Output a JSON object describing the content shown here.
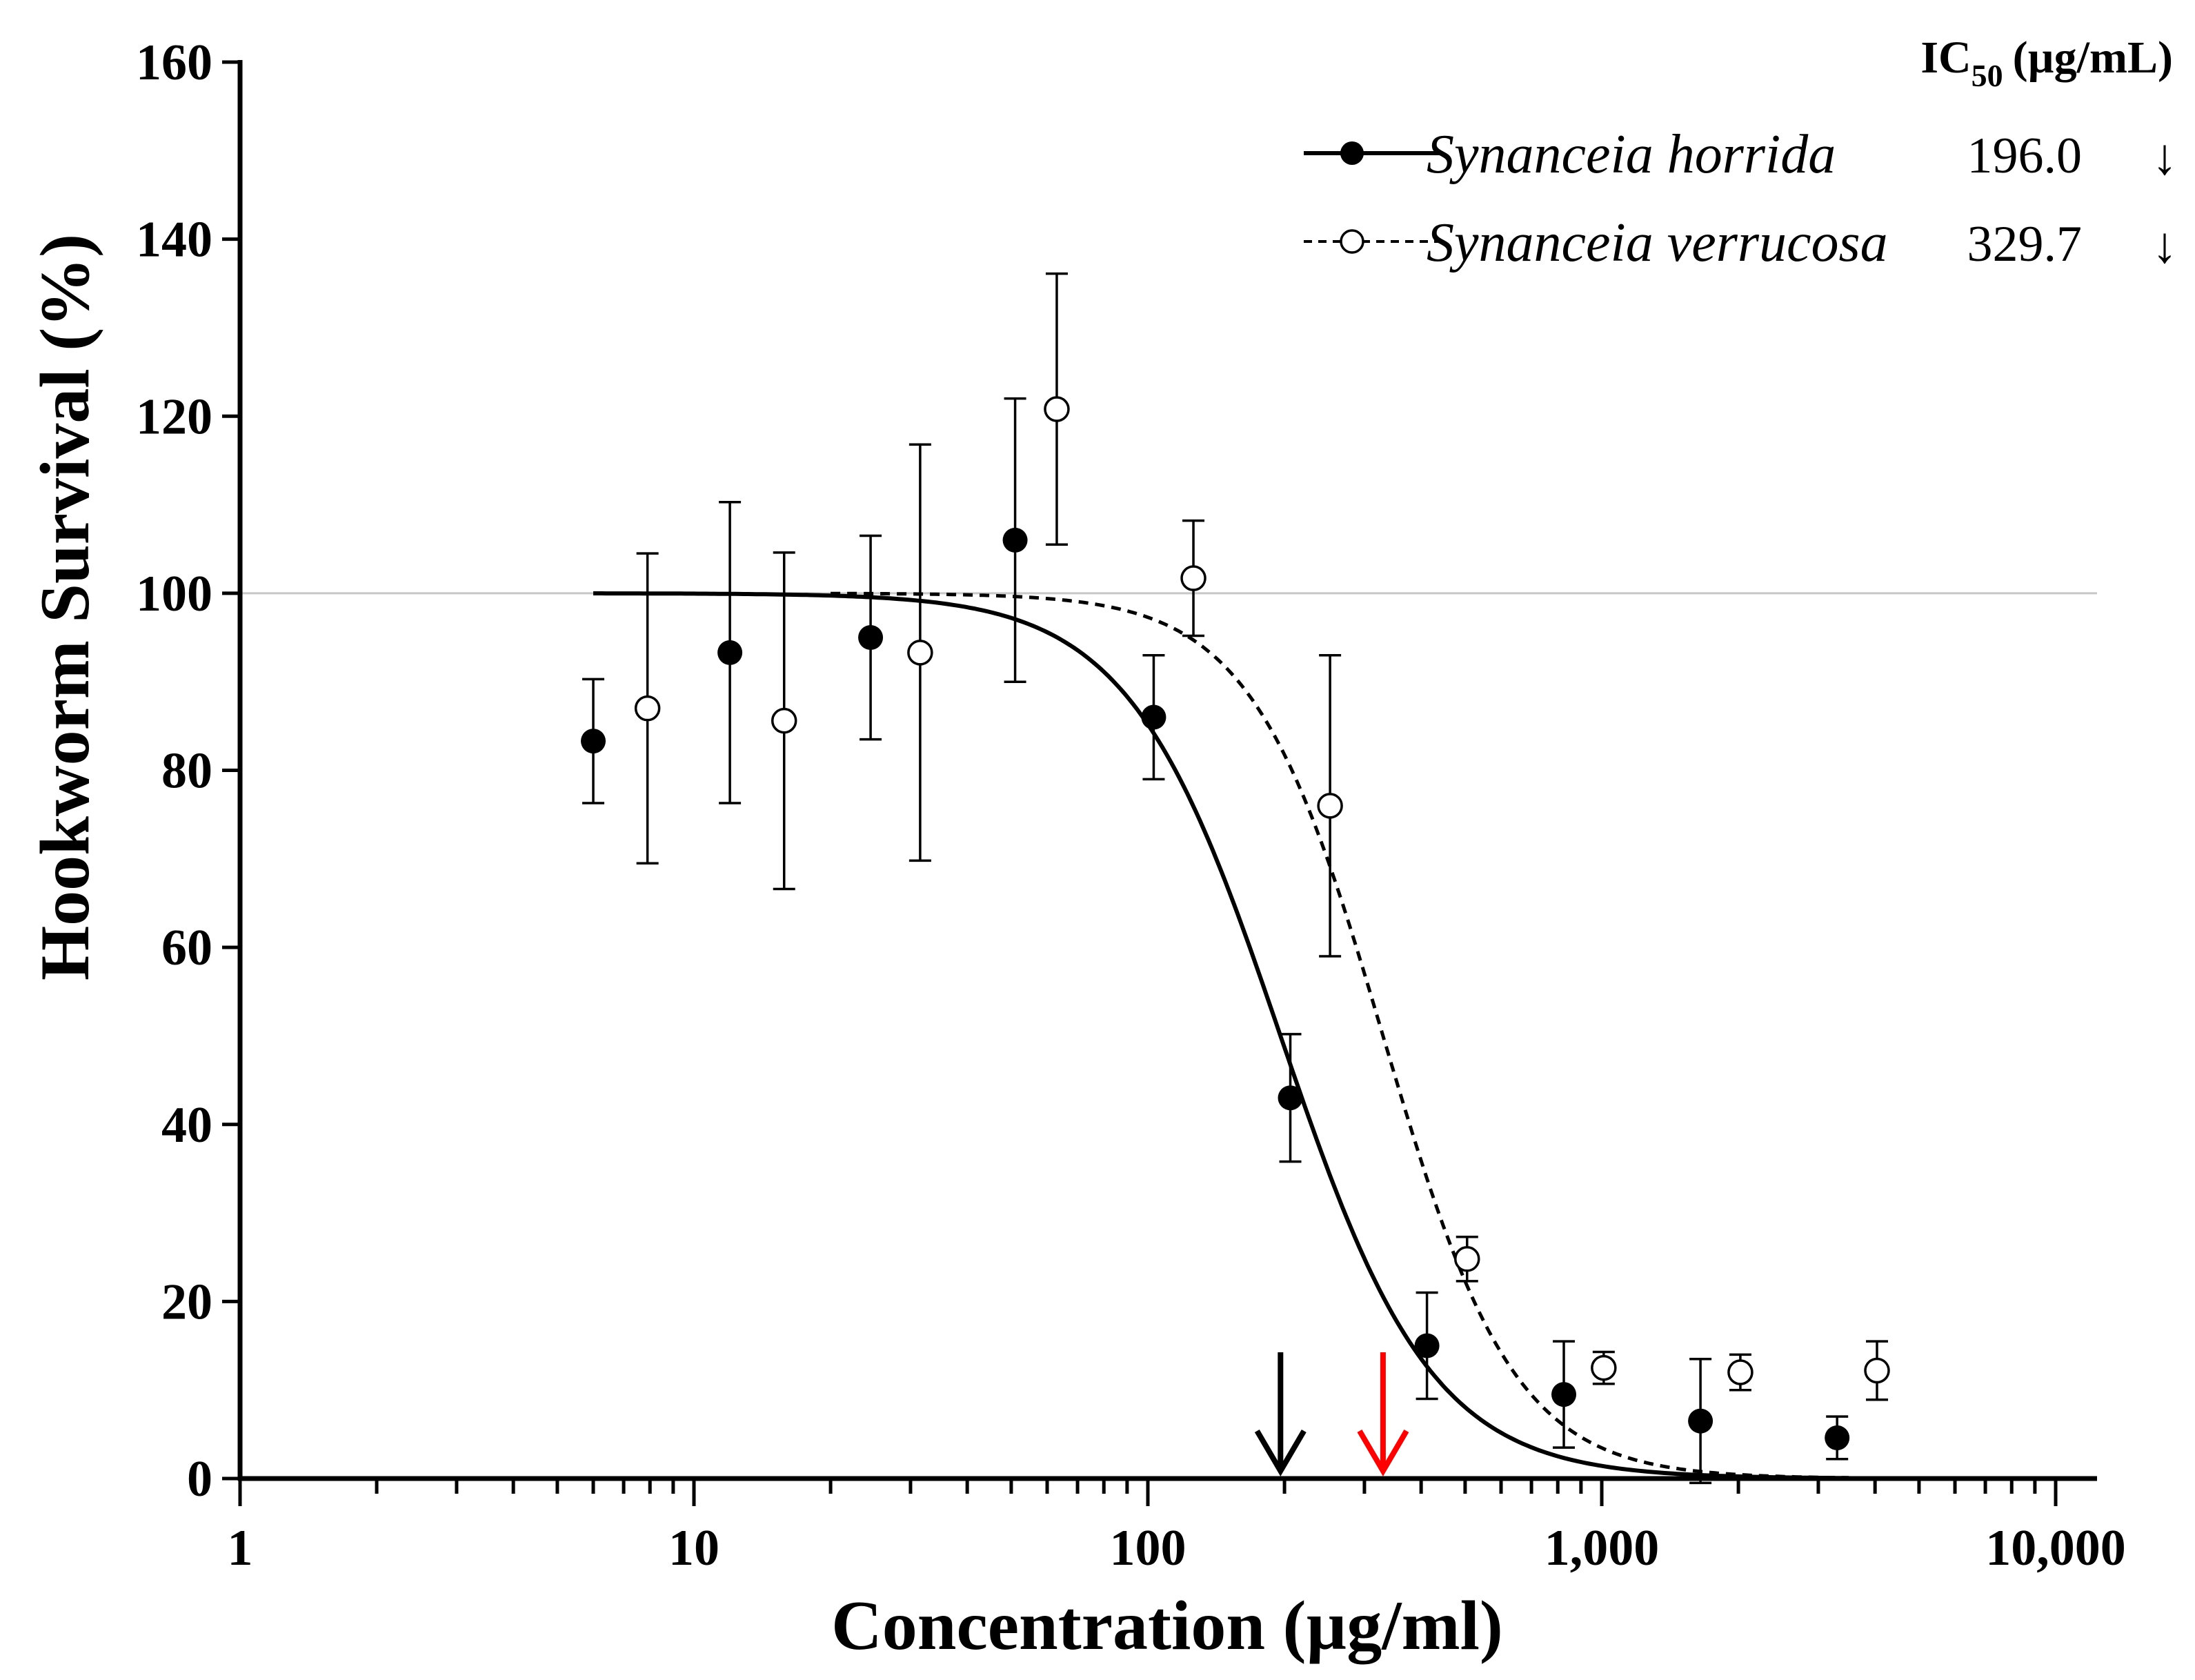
{
  "chart_data": {
    "type": "scatter",
    "title": "",
    "xlabel": "Concentration (µg/ml)",
    "ylabel": "Hookworm Survival (%)",
    "xscale": "log",
    "xlim": [
      1,
      12000
    ],
    "ylim": [
      0,
      160
    ],
    "x_ticks": [
      1,
      10,
      100,
      1000,
      10000
    ],
    "x_tick_labels": [
      "1",
      "10",
      "100",
      "1,000",
      "10,000"
    ],
    "y_ticks": [
      0,
      20,
      40,
      60,
      80,
      100,
      120,
      140,
      160
    ],
    "y_tick_labels": [
      "0",
      "20",
      "40",
      "60",
      "80",
      "100",
      "120",
      "140",
      "160"
    ],
    "reference_line_y": 100,
    "legend": {
      "placement": "top-right",
      "ic50_header": "IC",
      "ic50_header_sub": "50",
      "ic50_header_unit": "(µg/mL)",
      "arrow_glyph": "↓"
    },
    "series": [
      {
        "name": "Synanceia horrida",
        "marker": "filled-circle",
        "line": "solid",
        "color": "#000000",
        "ic50": 196.0,
        "ic50_label": "196.0",
        "arrow_color": "#000000",
        "points": [
          {
            "x": 6.0,
            "y": 83.3,
            "err": 7.0
          },
          {
            "x": 12.0,
            "y": 93.3,
            "err": 17.0
          },
          {
            "x": 24.5,
            "y": 95.0,
            "err": 11.5
          },
          {
            "x": 51.0,
            "y": 106.0,
            "err": 16.0
          },
          {
            "x": 103.0,
            "y": 86.0,
            "err": 7.0
          },
          {
            "x": 206.0,
            "y": 43.0,
            "err": 7.2
          },
          {
            "x": 412.0,
            "y": 15.0,
            "err": 6.0
          },
          {
            "x": 825.0,
            "y": 9.5,
            "err": 6.0
          },
          {
            "x": 1650.0,
            "y": 6.5,
            "err": 7.0
          },
          {
            "x": 3300.0,
            "y": 4.6,
            "err": 2.4
          }
        ],
        "curve": {
          "top": 100,
          "bottom": 0,
          "ec50": 196.0,
          "hill": 2.6,
          "x_from": 6.0,
          "x_to": 3500.0
        }
      },
      {
        "name": "Synanceia verrucosa",
        "marker": "open-circle",
        "line": "dashed",
        "color": "#000000",
        "ic50": 329.7,
        "ic50_label": "329.7",
        "arrow_color": "#ff0000",
        "points": [
          {
            "x": 7.9,
            "y": 87.0,
            "err": 17.5
          },
          {
            "x": 15.8,
            "y": 85.6,
            "err": 19.0
          },
          {
            "x": 31.5,
            "y": 93.3,
            "err": 23.5
          },
          {
            "x": 63.0,
            "y": 120.8,
            "err": 15.3
          },
          {
            "x": 126.0,
            "y": 101.7,
            "err": 6.5
          },
          {
            "x": 252.0,
            "y": 76.0,
            "err": 17.0
          },
          {
            "x": 505.0,
            "y": 24.8,
            "err": 2.5
          },
          {
            "x": 1010.0,
            "y": 12.5,
            "err": 1.8
          },
          {
            "x": 2020.0,
            "y": 12.0,
            "err": 2.0
          },
          {
            "x": 4040.0,
            "y": 12.2,
            "err": 3.3
          }
        ],
        "curve": {
          "top": 100,
          "bottom": 0,
          "ec50": 329.7,
          "hill": 3.0,
          "x_from": 20.0,
          "x_to": 4000.0
        }
      }
    ]
  }
}
